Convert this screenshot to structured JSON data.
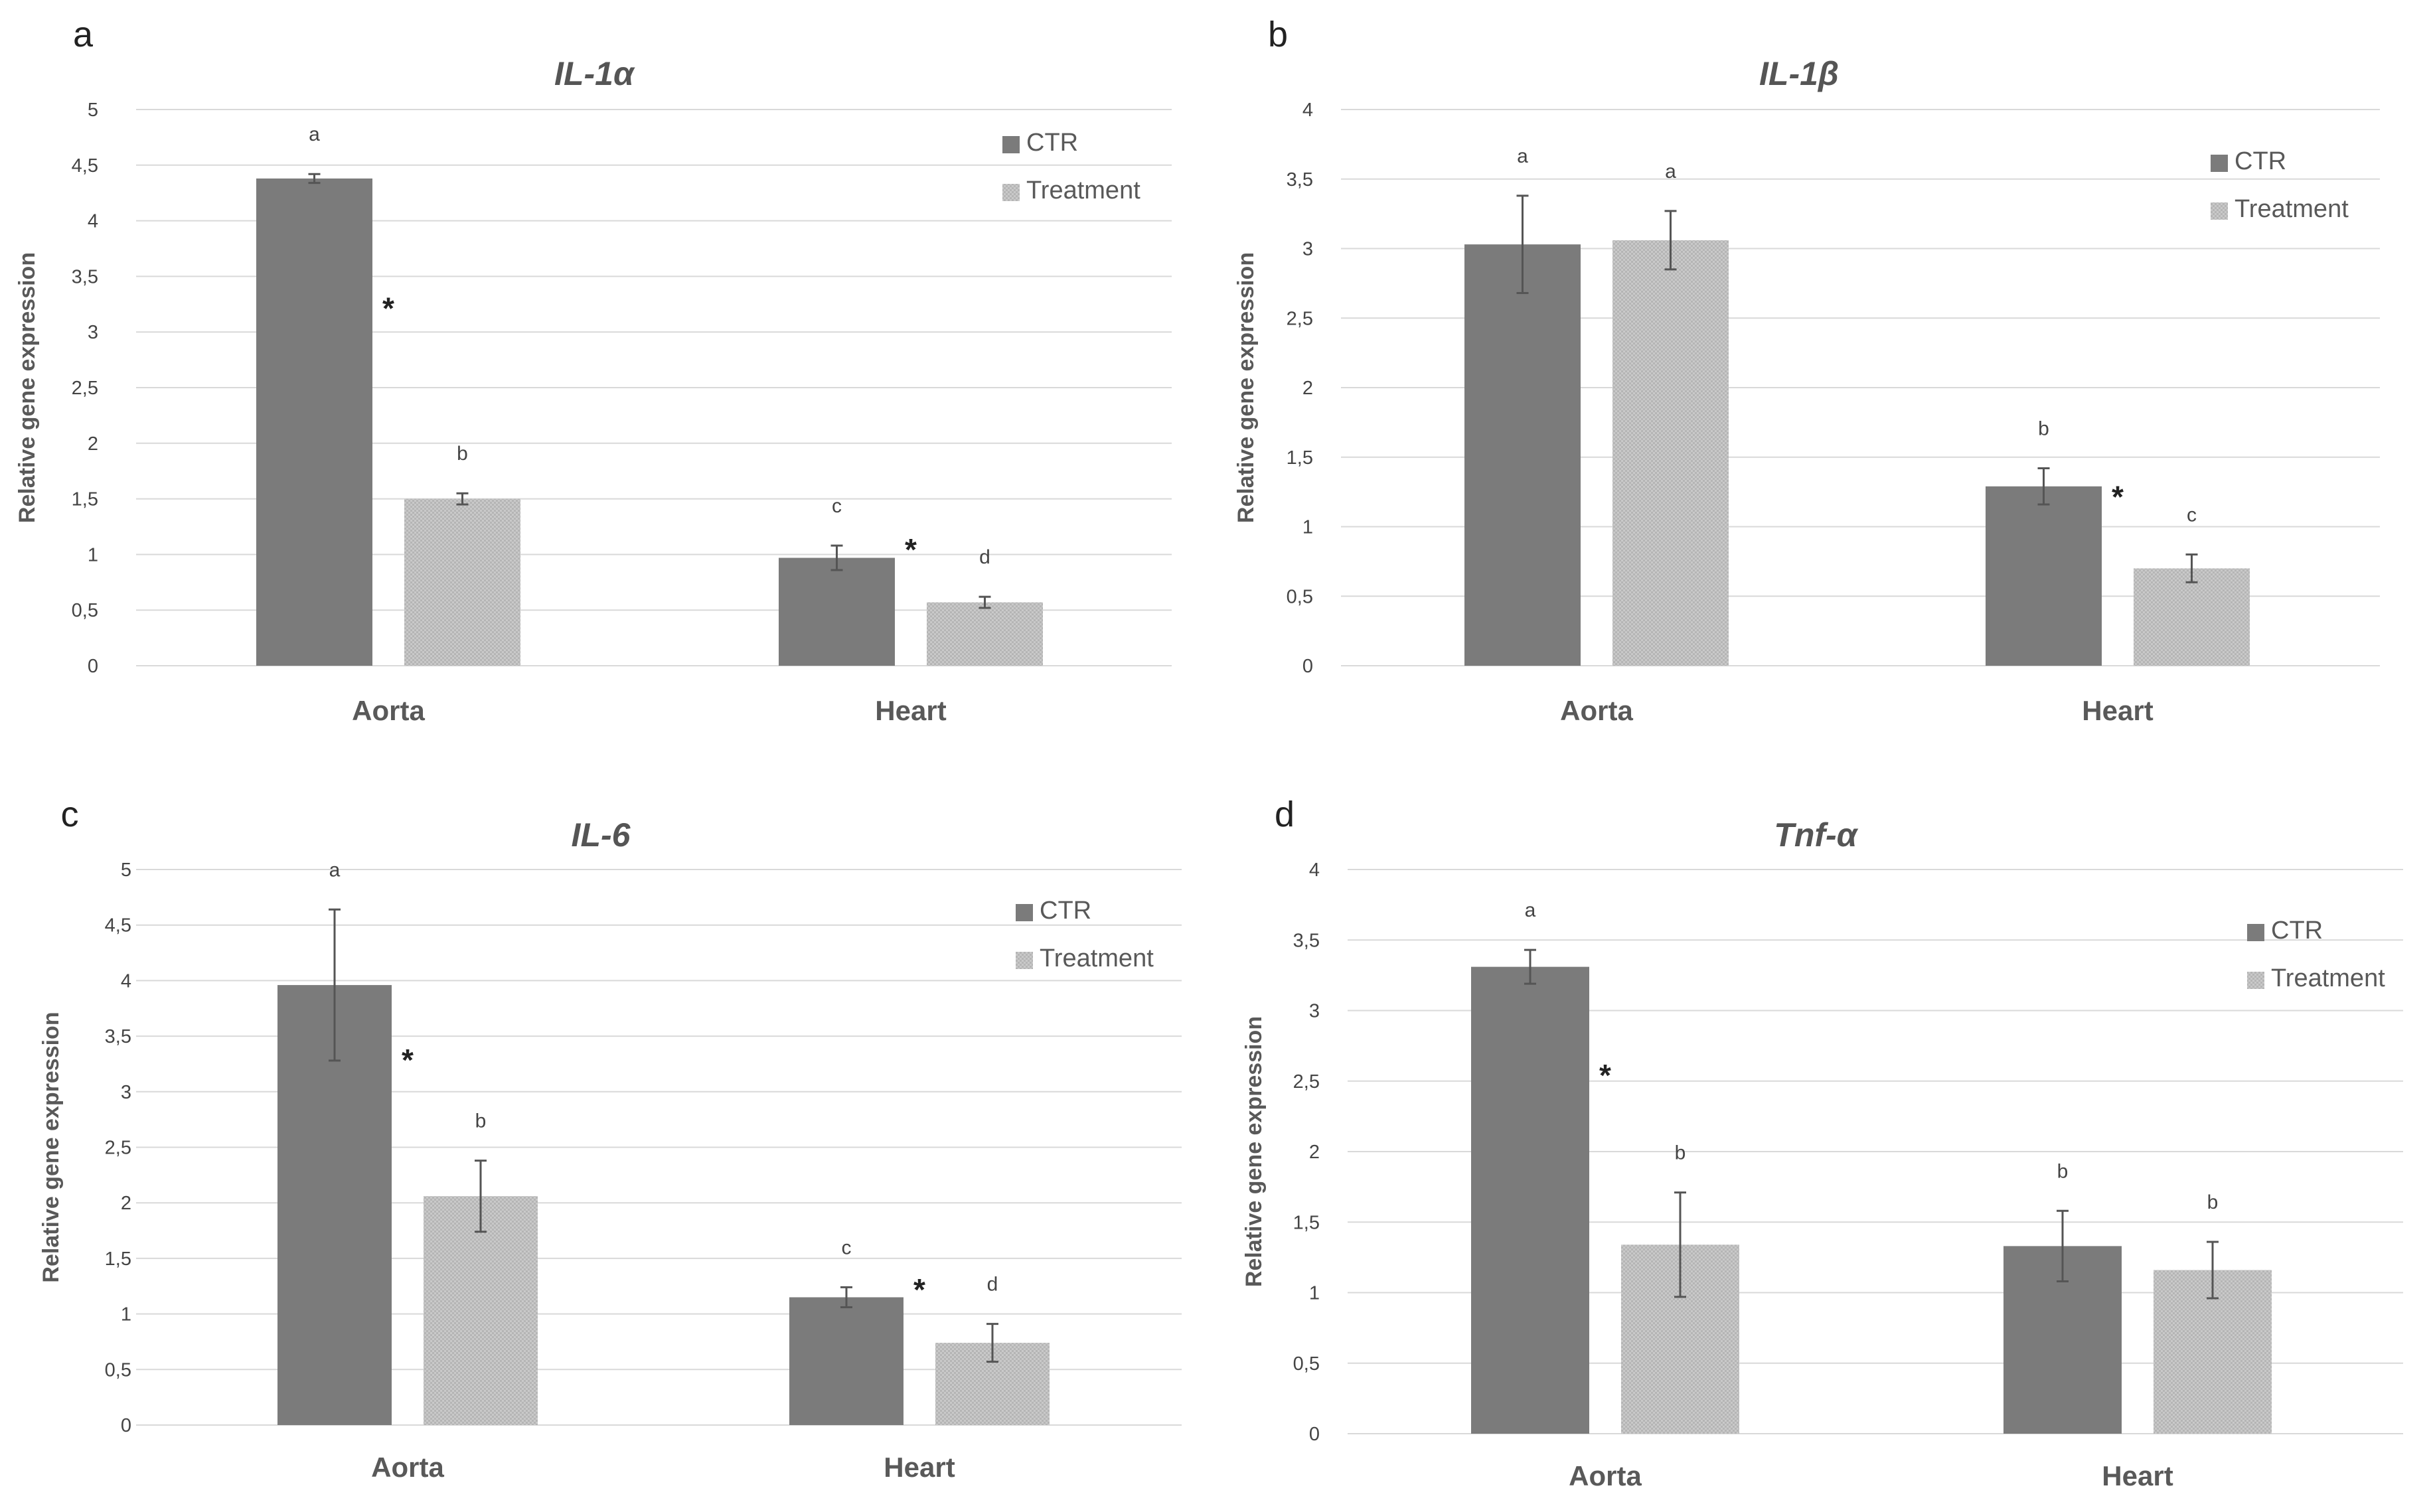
{
  "figure": {
    "legend_labels": [
      "CTR",
      "Treatment"
    ],
    "colors": {
      "ctr": "#7b7b7b",
      "treatment": "#c4c4c4",
      "grid": "#d9d9d9",
      "text": "#444444",
      "axis_title": "#595959"
    }
  },
  "chart_data": [
    {
      "panel": "a",
      "type": "bar",
      "title": "IL-1α",
      "ylabel": "Relative gene expression",
      "ylim": [
        0,
        5
      ],
      "yticks": [
        "0",
        "0,5",
        "1",
        "1,5",
        "2",
        "2,5",
        "3",
        "3,5",
        "4",
        "4,5",
        "5"
      ],
      "categories": [
        "Aorta",
        "Heart"
      ],
      "legend_position": "top-right",
      "series": [
        {
          "name": "CTR",
          "values": [
            4.38,
            0.97
          ],
          "errors": [
            0.04,
            0.11
          ],
          "letters": [
            "a",
            "c"
          ]
        },
        {
          "name": "Treatment",
          "values": [
            1.5,
            0.57
          ],
          "errors": [
            0.05,
            0.05
          ],
          "letters": [
            "b",
            "d"
          ]
        }
      ],
      "significance": [
        "*",
        "*"
      ]
    },
    {
      "panel": "b",
      "type": "bar",
      "title": "IL-1β",
      "ylabel": "Relative gene expression",
      "ylim": [
        0,
        4
      ],
      "yticks": [
        "0",
        "0,5",
        "1",
        "1,5",
        "2",
        "2,5",
        "3",
        "3,5",
        "4"
      ],
      "categories": [
        "Aorta",
        "Heart"
      ],
      "legend_position": "top-right",
      "series": [
        {
          "name": "CTR",
          "values": [
            3.03,
            1.29
          ],
          "errors": [
            0.35,
            0.13
          ],
          "letters": [
            "a",
            "b"
          ]
        },
        {
          "name": "Treatment",
          "values": [
            3.06,
            0.7
          ],
          "errors": [
            0.21,
            0.1
          ],
          "letters": [
            "a",
            "c"
          ]
        }
      ],
      "significance": [
        "",
        "*"
      ]
    },
    {
      "panel": "c",
      "type": "bar",
      "title": "IL-6",
      "ylabel": "Relative gene expression",
      "ylim": [
        0,
        5
      ],
      "yticks": [
        "0",
        "0,5",
        "1",
        "1,5",
        "2",
        "2,5",
        "3",
        "3,5",
        "4",
        "4,5",
        "5"
      ],
      "categories": [
        "Aorta",
        "Heart"
      ],
      "legend_position": "top-right",
      "series": [
        {
          "name": "CTR",
          "values": [
            3.96,
            1.15
          ],
          "errors": [
            0.68,
            0.09
          ],
          "letters": [
            "a",
            "c"
          ]
        },
        {
          "name": "Treatment",
          "values": [
            2.06,
            0.74
          ],
          "errors": [
            0.32,
            0.17
          ],
          "letters": [
            "b",
            "d"
          ]
        }
      ],
      "significance": [
        "*",
        "*"
      ]
    },
    {
      "panel": "d",
      "type": "bar",
      "title": "Tnf-α",
      "ylabel": "Relative gene expression",
      "ylim": [
        0,
        4
      ],
      "yticks": [
        "0",
        "0,5",
        "1",
        "1,5",
        "2",
        "2,5",
        "3",
        "3,5",
        "4"
      ],
      "categories": [
        "Aorta",
        "Heart"
      ],
      "legend_position": "top-right",
      "series": [
        {
          "name": "CTR",
          "values": [
            3.31,
            1.33
          ],
          "errors": [
            0.12,
            0.25
          ],
          "letters": [
            "a",
            "b"
          ]
        },
        {
          "name": "Treatment",
          "values": [
            1.34,
            1.16
          ],
          "errors": [
            0.37,
            0.2
          ],
          "letters": [
            "b",
            "b"
          ]
        }
      ],
      "significance": [
        "*",
        ""
      ]
    }
  ]
}
